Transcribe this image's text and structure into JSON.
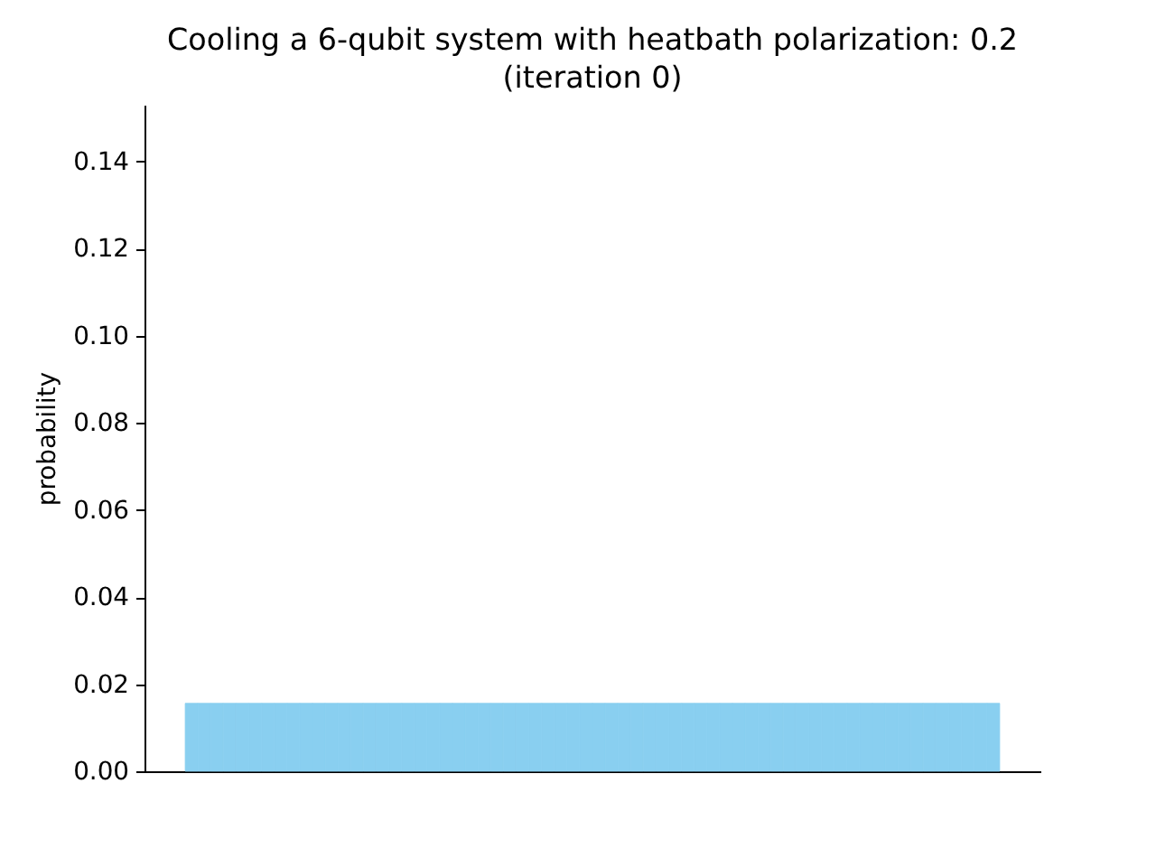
{
  "chart_data": {
    "type": "bar",
    "title": "Cooling a 6-qubit system with heatbath polarization: 0.2\n(iteration 0)",
    "ylabel": "probability",
    "categories": [
      null,
      null,
      null,
      null,
      null,
      null,
      null,
      null,
      null,
      null,
      null,
      null,
      null,
      null,
      null,
      null,
      null,
      null,
      null,
      null,
      null,
      null,
      null,
      null,
      null,
      null,
      null,
      null,
      null,
      null,
      null,
      null,
      null,
      null,
      null,
      null,
      null,
      null,
      null,
      null,
      null,
      null,
      null,
      null,
      null,
      null,
      null,
      null,
      null,
      null,
      null,
      null,
      null,
      null,
      null,
      null,
      null,
      null,
      null,
      null,
      null,
      null,
      null,
      null
    ],
    "values": [
      0.0156,
      0.0156,
      0.0156,
      0.0156,
      0.0156,
      0.0156,
      0.0156,
      0.0156,
      0.0156,
      0.0156,
      0.0156,
      0.0156,
      0.0156,
      0.0156,
      0.0156,
      0.0156,
      0.0156,
      0.0156,
      0.0156,
      0.0156,
      0.0156,
      0.0156,
      0.0156,
      0.0156,
      0.0156,
      0.0156,
      0.0156,
      0.0156,
      0.0156,
      0.0156,
      0.0156,
      0.0156,
      0.0156,
      0.0156,
      0.0156,
      0.0156,
      0.0156,
      0.0156,
      0.0156,
      0.0156,
      0.0156,
      0.0156,
      0.0156,
      0.0156,
      0.0156,
      0.0156,
      0.0156,
      0.0156,
      0.0156,
      0.0156,
      0.0156,
      0.0156,
      0.0156,
      0.0156,
      0.0156,
      0.0156,
      0.0156,
      0.0156,
      0.0156,
      0.0156,
      0.0156,
      0.0156,
      0.0156,
      0.0156
    ],
    "color": "#89cff0",
    "ylim": [
      0,
      0.153
    ],
    "yticks": [
      {
        "value": 0,
        "label": "0.00"
      },
      {
        "value": 0.02,
        "label": "0.02"
      },
      {
        "value": 0.04,
        "label": "0.04"
      },
      {
        "value": 0.06,
        "label": "0.06"
      },
      {
        "value": 0.08,
        "label": "0.08"
      },
      {
        "value": 0.1,
        "label": "0.10"
      },
      {
        "value": 0.12,
        "label": "0.12"
      },
      {
        "value": 0.14,
        "label": "0.14"
      }
    ],
    "tick_labels": "y",
    "grid": false
  }
}
